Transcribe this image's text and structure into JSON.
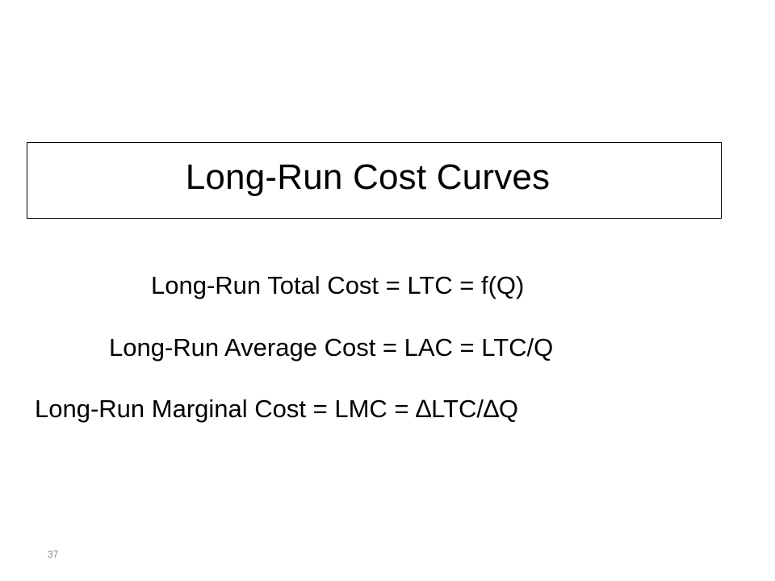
{
  "slide": {
    "title": "Long-Run Cost Curves",
    "formulas": [
      "Long-Run Total Cost = LTC = f(Q)",
      "Long-Run Average Cost = LAC = LTC/Q",
      "Long-Run Marginal Cost = LMC = ∆LTC/∆Q"
    ],
    "page_number": "37"
  },
  "colors": {
    "background": "#ffffff",
    "text": "#000000",
    "border": "#000000",
    "page_number": "#8c8c8c"
  }
}
